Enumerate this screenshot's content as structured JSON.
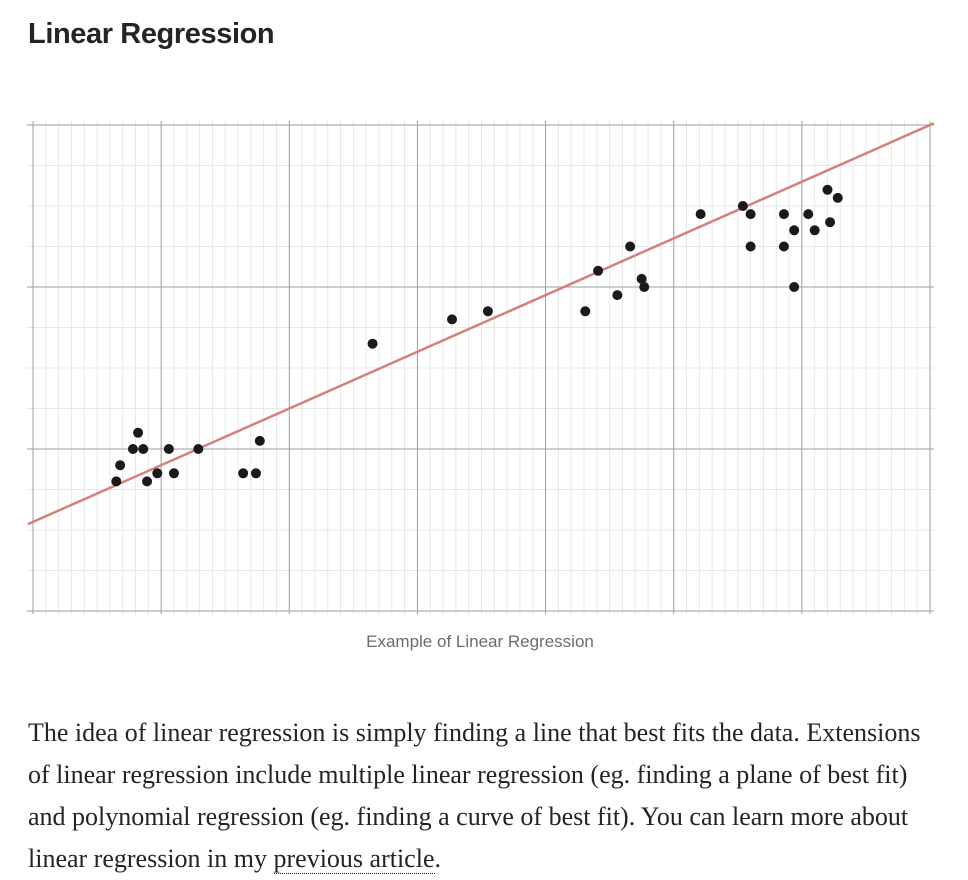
{
  "article": {
    "heading": "Linear Regression",
    "caption": "Example of Linear Regression",
    "paragraph_lead": "The idea of linear regression is simply finding a line that best fits the data. Extensions of linear regression include multiple linear regression (eg. finding a plane of best fit) and polynomial regression (eg. finding a curve of best fit). You can learn more about linear regression in my ",
    "link_text": "previous article",
    "paragraph_end": "."
  },
  "chart_data": {
    "type": "scatter",
    "title": "",
    "xlabel": "",
    "ylabel": "",
    "grid": true,
    "xlim": [
      0,
      70
    ],
    "ylim": [
      0,
      60
    ],
    "line_color": "#d4817b",
    "point_color": "#1a1a1a",
    "fit_line": [
      [
        0,
        11
      ],
      [
        70,
        60
      ]
    ],
    "x": [
      6.5,
      6.8,
      7.8,
      8.2,
      8.6,
      8.9,
      9.7,
      10.6,
      11.0,
      12.9,
      16.4,
      17.4,
      17.7,
      26.5,
      32.7,
      35.5,
      43.1,
      44.1,
      45.6,
      46.6,
      47.5,
      47.7,
      52.1,
      55.4,
      56.0,
      56.0,
      58.6,
      58.6,
      59.4,
      59.4,
      60.5,
      61.0,
      62.0,
      62.2,
      62.8
    ],
    "y": [
      16,
      18,
      20,
      22,
      20,
      16,
      17,
      20,
      17,
      20,
      17,
      17,
      21,
      33,
      36,
      37,
      37,
      42,
      39,
      45,
      41,
      40,
      49,
      50,
      45,
      49,
      49,
      45,
      47,
      40,
      49,
      47,
      52,
      48,
      51
    ]
  }
}
